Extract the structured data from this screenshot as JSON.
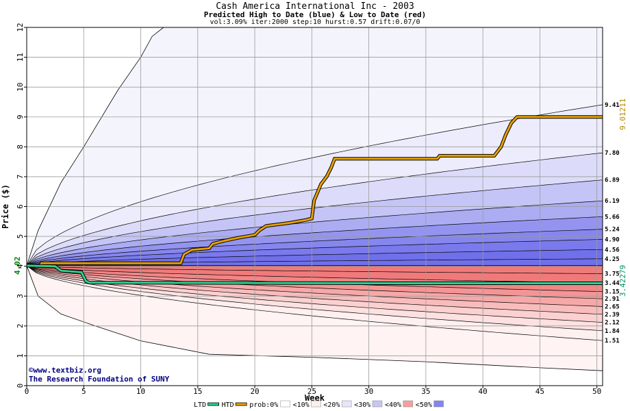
{
  "header": {
    "title": "Cash America International Inc - 2003",
    "subtitle": "Predicted High to Date (blue) &  Low to Date (red)",
    "params": "vol:3.09% iter:2000 step:10 hurst:0.57 drift:0.07/0"
  },
  "credits": {
    "site": "©www.textbiz.org",
    "org": "The Research Foundation of SUNY"
  },
  "chart_data": {
    "type": "area",
    "xlabel": "Week",
    "ylabel": "Price ($)",
    "xlim": [
      0,
      50.5
    ],
    "ylim": [
      0,
      12
    ],
    "xticks": [
      0,
      5,
      10,
      15,
      20,
      25,
      30,
      35,
      40,
      45,
      50
    ],
    "yticks": [
      0,
      1,
      2,
      3,
      4,
      5,
      6,
      7,
      8,
      9,
      10,
      11,
      12
    ],
    "grid": true,
    "start_price": 4.02,
    "start_label": "4.02",
    "high_bands_end": [
      4.25,
      4.56,
      4.9,
      5.24,
      5.66,
      6.19,
      6.89,
      7.8,
      9.41
    ],
    "low_bands_end": [
      3.75,
      3.44,
      3.15,
      2.91,
      2.65,
      2.39,
      2.12,
      1.84,
      1.51
    ],
    "end_labels": [
      "9.41",
      "7.80",
      "6.89",
      "6.19",
      "5.66",
      "5.24",
      "4.90",
      "4.56",
      "4.25",
      "3.75",
      "3.44",
      "3.15",
      "2.91",
      "2.65",
      "2.39",
      "2.12",
      "1.84",
      "1.51"
    ],
    "outer_high": [
      [
        0,
        4.02
      ],
      [
        1,
        5.2
      ],
      [
        3,
        6.8
      ],
      [
        5,
        8.0
      ],
      [
        8,
        9.9
      ],
      [
        10,
        11.0
      ],
      [
        11,
        11.7
      ],
      [
        12,
        12.0
      ]
    ],
    "outer_low": [
      [
        0,
        4.02
      ],
      [
        1,
        3.0
      ],
      [
        3,
        2.4
      ],
      [
        6,
        2.0
      ],
      [
        10,
        1.5
      ],
      [
        16,
        1.05
      ],
      [
        25,
        0.95
      ],
      [
        35,
        0.8
      ],
      [
        45,
        0.6
      ],
      [
        50.5,
        0.5
      ]
    ],
    "series": [
      {
        "name": "HTD",
        "color": "#e8a000",
        "points": [
          [
            0,
            4.02
          ],
          [
            1.2,
            4.02
          ],
          [
            1.3,
            4.1
          ],
          [
            5,
            4.1
          ],
          [
            13.5,
            4.1
          ],
          [
            13.8,
            4.4
          ],
          [
            14.5,
            4.55
          ],
          [
            16,
            4.6
          ],
          [
            16.3,
            4.75
          ],
          [
            17.3,
            4.85
          ],
          [
            18.5,
            4.95
          ],
          [
            20,
            5.05
          ],
          [
            20.4,
            5.2
          ],
          [
            21,
            5.35
          ],
          [
            23,
            5.45
          ],
          [
            24.5,
            5.55
          ],
          [
            25,
            5.6
          ],
          [
            25.2,
            6.2
          ],
          [
            25.8,
            6.75
          ],
          [
            26.3,
            7.0
          ],
          [
            26.7,
            7.3
          ],
          [
            27,
            7.6
          ],
          [
            36,
            7.6
          ],
          [
            36.2,
            7.7
          ],
          [
            41,
            7.7
          ],
          [
            41.6,
            8.0
          ],
          [
            42,
            8.4
          ],
          [
            42.5,
            8.8
          ],
          [
            43,
            9.0
          ],
          [
            50.5,
            9.0
          ]
        ],
        "end_label": "9.01211"
      },
      {
        "name": "LTD",
        "color": "#30d090",
        "points": [
          [
            0,
            4.02
          ],
          [
            2.5,
            4.0
          ],
          [
            3,
            3.85
          ],
          [
            4.8,
            3.8
          ],
          [
            5.2,
            3.5
          ],
          [
            5.5,
            3.45
          ],
          [
            30,
            3.43
          ],
          [
            50.5,
            3.43
          ]
        ],
        "end_label": "3.42279"
      }
    ],
    "legend": {
      "position": "bottom",
      "items": [
        {
          "label": "LTD",
          "type": "line",
          "color": "#30d090"
        },
        {
          "label": "HTD",
          "type": "line",
          "color": "#e8a000"
        },
        {
          "label": "prob:0%",
          "type": "swatch",
          "color": "#ffffff"
        },
        {
          "label": "<10%",
          "type": "swatch",
          "color": "#fdeeee"
        },
        {
          "label": "<20%",
          "type": "swatch",
          "color": "#e6e6fb"
        },
        {
          "label": "<30%",
          "type": "swatch",
          "color": "#c6c6f5"
        },
        {
          "label": "<40%",
          "type": "swatch",
          "color": "#f2a0a0"
        },
        {
          "label": "<50%",
          "type": "swatch",
          "color": "#8585ee"
        }
      ]
    },
    "colors": {
      "high_fills": [
        "#ececfc",
        "#dcdcfa",
        "#c4c4f6",
        "#acacf3",
        "#9494f0",
        "#8686ef",
        "#7a7aed",
        "#7070ea",
        "#7070ea"
      ],
      "low_fills": [
        "#fff0f0",
        "#fde1e1",
        "#fad0d0",
        "#f8bcbc",
        "#f6a8a8",
        "#f49595",
        "#f28585",
        "#f07a7a",
        "#f07a7a"
      ],
      "outer_high_fill": "#f4f4fd",
      "outer_low_fill": "#fff3f3",
      "label_htd": "#b08800",
      "label_ltd": "#009060",
      "start_label": "#008000"
    }
  }
}
